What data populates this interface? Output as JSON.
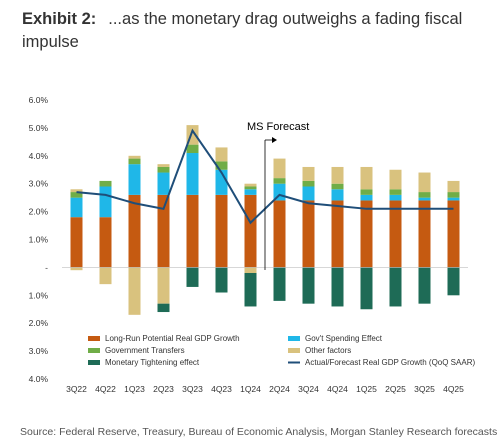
{
  "header": {
    "lead": "Exhibit 2:",
    "title": "...as the monetary drag outweighs a fading fiscal impulse"
  },
  "source": "Source: Federal Reserve, Treasury, Bureau of Economic Analysis, Morgan Stanley Research forecasts",
  "chart_data": {
    "type": "bar",
    "subtype": "stacked-bar-with-line",
    "categories": [
      "3Q22",
      "4Q22",
      "1Q23",
      "2Q23",
      "3Q23",
      "4Q23",
      "1Q24",
      "2Q24",
      "3Q24",
      "4Q24",
      "1Q25",
      "2Q25",
      "3Q25",
      "4Q25"
    ],
    "ylim": [
      -4.0,
      6.0
    ],
    "y_ticks": [
      "6.0%",
      "5.0%",
      "4.0%",
      "3.0%",
      "2.0%",
      "1.0%",
      "-",
      "1.0%",
      "2.0%",
      "3.0%",
      "4.0%"
    ],
    "colors": {
      "potential": "#c55a11",
      "govt_spending": "#1fb7e8",
      "transfers": "#70ad47",
      "other": "#d9c27e",
      "monetary": "#1e6b56",
      "line": "#1f4e79"
    },
    "series": [
      {
        "key": "potential",
        "name": "Long-Run Potential Real GDP Growth",
        "values": [
          1.8,
          1.8,
          2.6,
          2.6,
          2.6,
          2.6,
          2.6,
          2.4,
          2.4,
          2.4,
          2.4,
          2.4,
          2.4,
          2.4
        ]
      },
      {
        "key": "govt_spending",
        "name": "Gov't Spending Effect",
        "values": [
          0.7,
          1.1,
          1.1,
          0.8,
          1.5,
          0.9,
          0.2,
          0.6,
          0.5,
          0.4,
          0.2,
          0.2,
          0.1,
          0.1
        ]
      },
      {
        "key": "transfers",
        "name": "Government Transfers",
        "values": [
          0.2,
          0.2,
          0.2,
          0.2,
          0.3,
          0.3,
          0.1,
          0.2,
          0.2,
          0.2,
          0.2,
          0.2,
          0.2,
          0.2
        ]
      },
      {
        "key": "other",
        "name": "Other factors",
        "values": [
          0.1,
          0.0,
          0.1,
          0.1,
          0.7,
          0.5,
          0.1,
          0.7,
          0.5,
          0.6,
          0.8,
          0.7,
          0.7,
          0.4
        ]
      },
      {
        "key": "other_neg",
        "name": "",
        "legend": false,
        "values": [
          -0.1,
          -0.6,
          -1.7,
          -1.3,
          0.0,
          0.0,
          -0.2,
          0.0,
          0.0,
          0.0,
          0.0,
          0.0,
          0.0,
          0.0
        ]
      },
      {
        "key": "monetary",
        "name": "Monetary Tightening  effect",
        "values": [
          0.0,
          0.0,
          0.0,
          -0.3,
          -0.7,
          -0.9,
          -1.2,
          -1.2,
          -1.3,
          -1.4,
          -1.5,
          -1.4,
          -1.3,
          -1.0
        ]
      }
    ],
    "line": {
      "name": "Actual/Forecast Real GDP Growth (QoQ SAAR)",
      "values": [
        2.7,
        2.6,
        2.3,
        2.1,
        4.9,
        3.4,
        1.6,
        2.6,
        2.3,
        2.2,
        2.1,
        2.1,
        2.1,
        2.1
      ]
    },
    "annotation": {
      "text": "MS Forecast",
      "at_category": "1Q24"
    },
    "legend_position": "lower-middle"
  }
}
